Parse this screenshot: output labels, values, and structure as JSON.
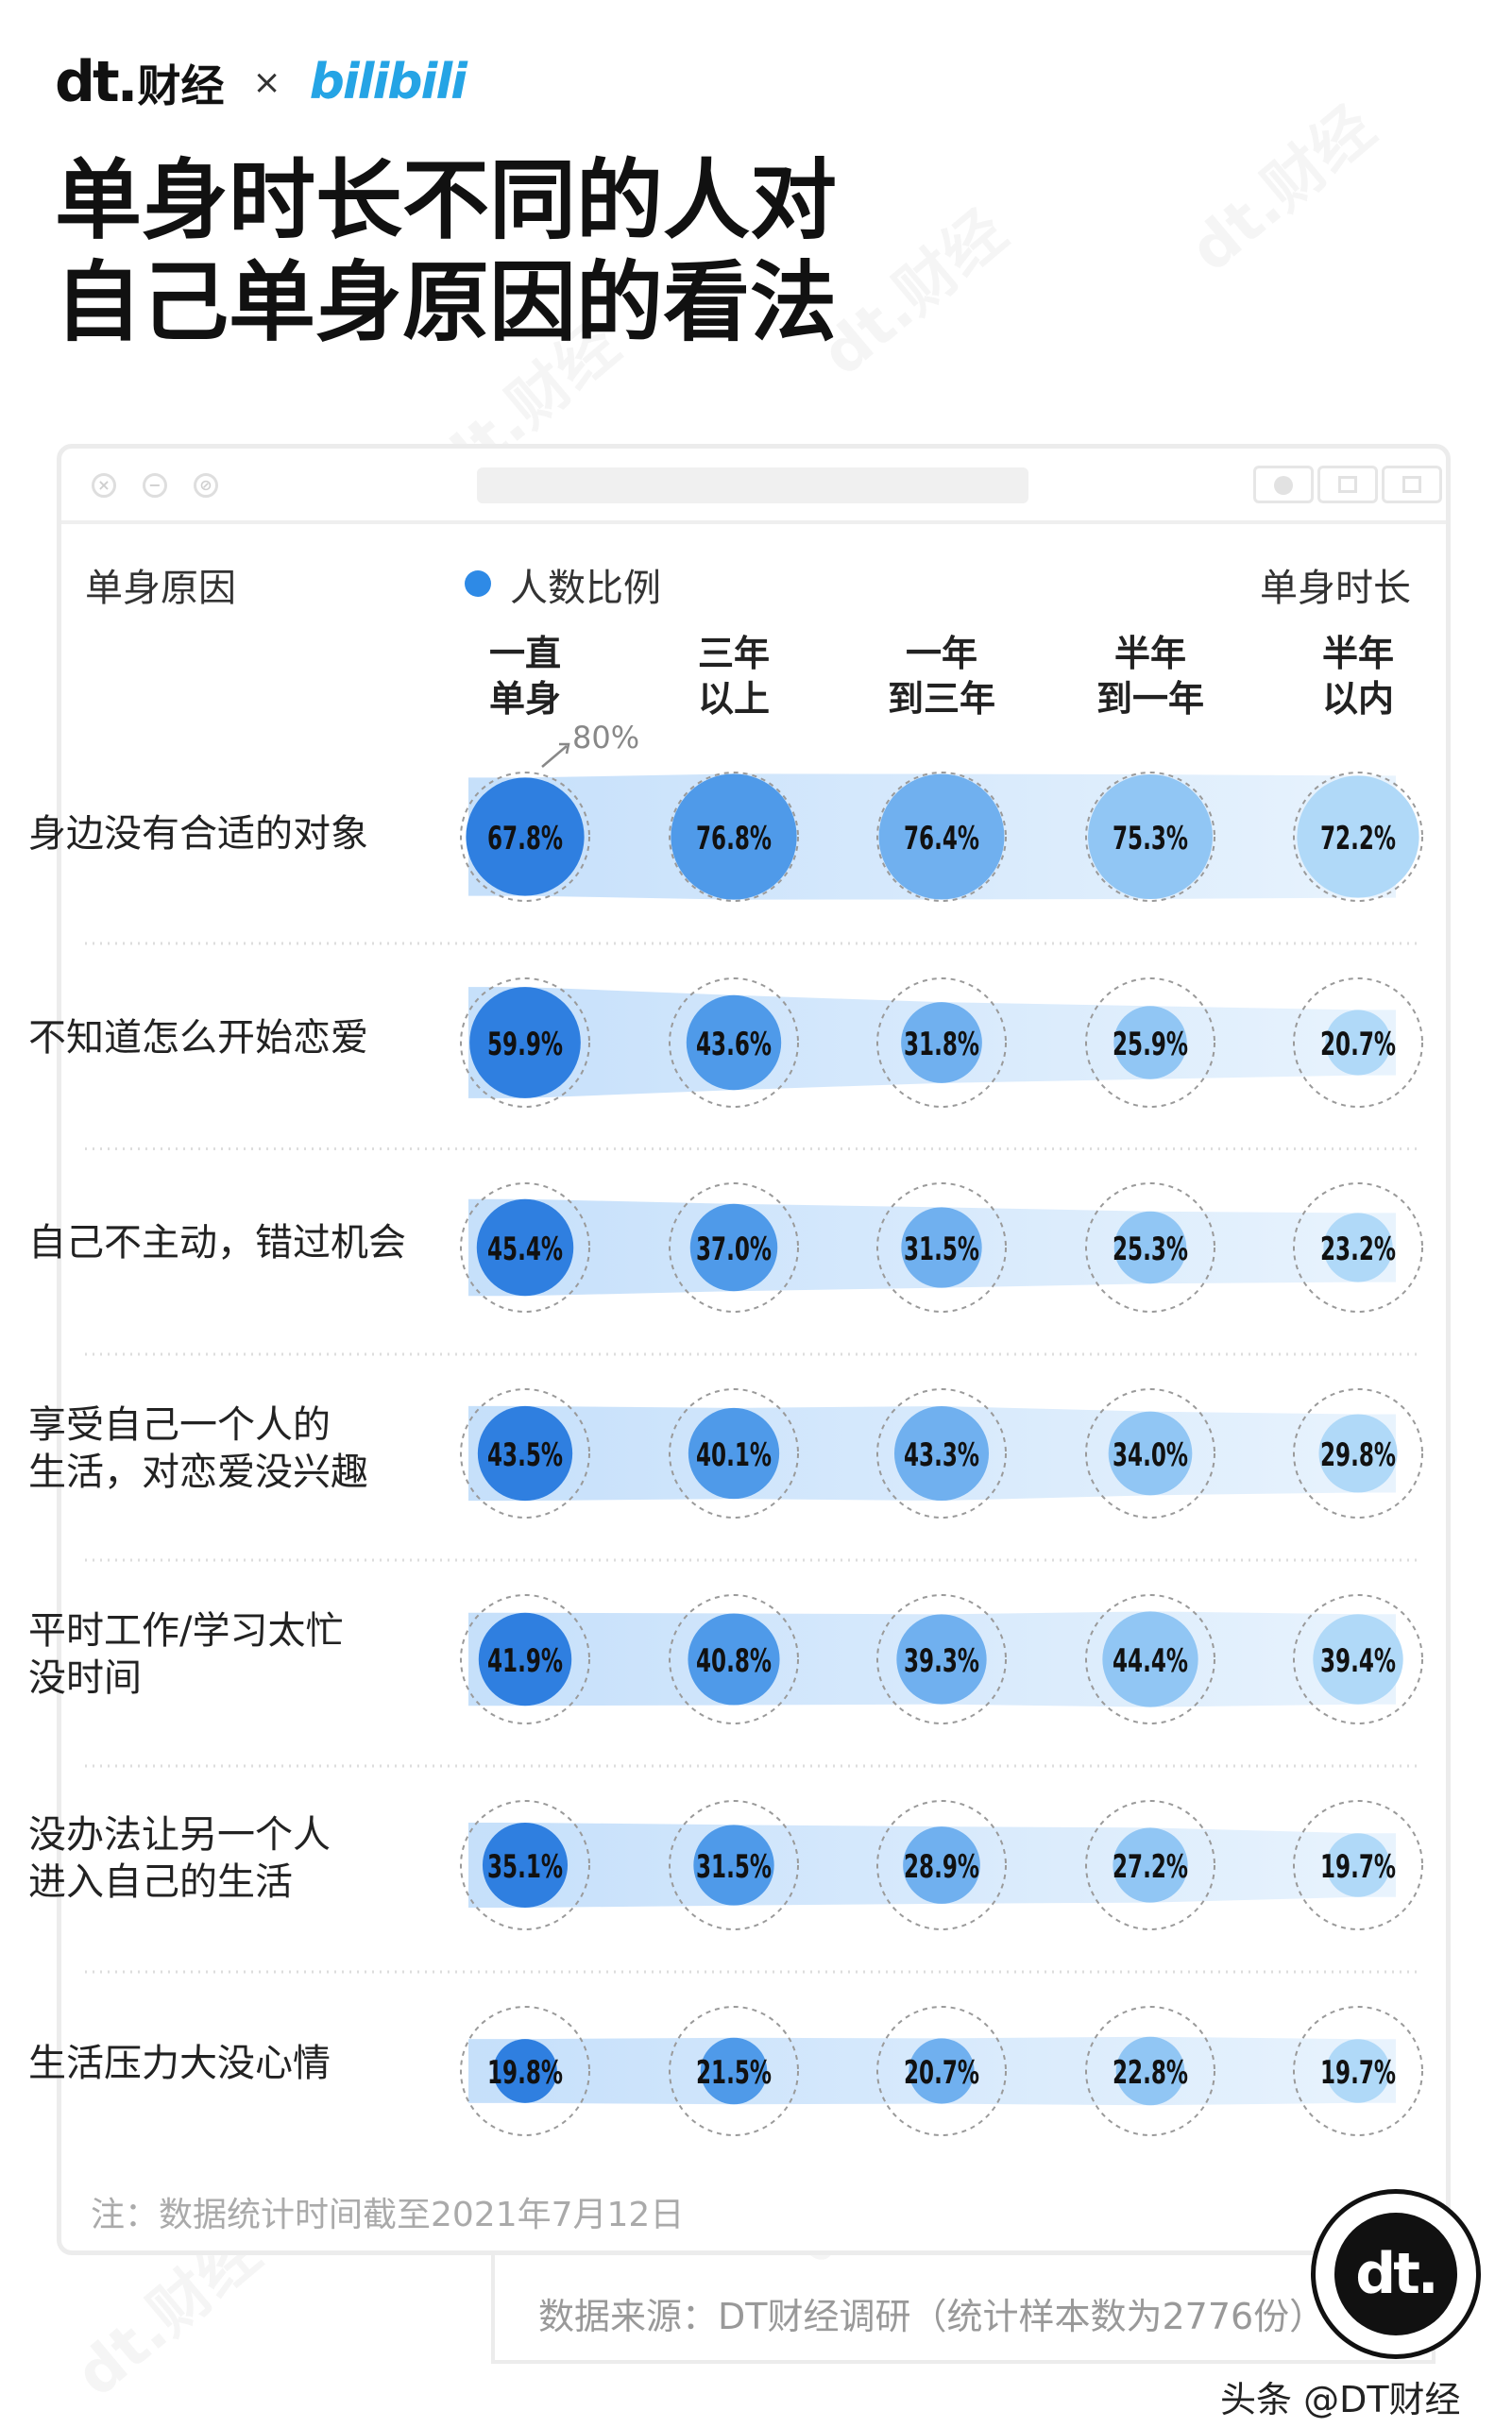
{
  "brand": {
    "dt": "dt.",
    "cj": "财经",
    "times": "×",
    "partner": "bilibili",
    "badge": "dt."
  },
  "watermark": "dt.财经",
  "title": {
    "line1": "单身时长不同的人对",
    "line2": "自己单身原因的看法"
  },
  "window": {
    "controls": [
      "×",
      "−",
      "⊘"
    ]
  },
  "chart_header": {
    "left": "单身原因",
    "legend": "人数比例",
    "right": "单身时长",
    "scale_note": "80%"
  },
  "colors": {
    "accent": "#2e8ae6",
    "bar": "#cfe4fb"
  },
  "chart_data": {
    "type": "bubble-matrix",
    "columns": [
      {
        "lines": [
          "一直",
          "单身"
        ]
      },
      {
        "lines": [
          "三年",
          "以上"
        ]
      },
      {
        "lines": [
          "一年",
          "到三年"
        ]
      },
      {
        "lines": [
          "半年",
          "到一年"
        ]
      },
      {
        "lines": [
          "半年",
          "以内"
        ]
      }
    ],
    "column_colors": [
      "#2f7fe0",
      "#4f9ae9",
      "#70b0ef",
      "#91c6f4",
      "#b0d9f8"
    ],
    "rows": [
      {
        "label": [
          "身边没有合适的对象"
        ],
        "values": [
          67.8,
          76.8,
          76.4,
          75.3,
          72.2
        ],
        "text": [
          "67.8%",
          "76.8%",
          "76.4%",
          "75.3%",
          "72.2%"
        ]
      },
      {
        "label": [
          "不知道怎么开始恋爱"
        ],
        "values": [
          59.9,
          43.6,
          31.8,
          25.9,
          20.7
        ],
        "text": [
          "59.9%",
          "43.6%",
          "31.8%",
          "25.9%",
          "20.7%"
        ]
      },
      {
        "label": [
          "自己不主动，错过机会"
        ],
        "values": [
          45.4,
          37.0,
          31.5,
          25.3,
          23.2
        ],
        "text": [
          "45.4%",
          "37.0%",
          "31.5%",
          "25.3%",
          "23.2%"
        ]
      },
      {
        "label": [
          "享受自己一个人的",
          "生活，对恋爱没兴趣"
        ],
        "values": [
          43.5,
          40.1,
          43.3,
          34.0,
          29.8
        ],
        "text": [
          "43.5%",
          "40.1%",
          "43.3%",
          "34.0%",
          "29.8%"
        ]
      },
      {
        "label": [
          "平时工作/学习太忙",
          "没时间"
        ],
        "values": [
          41.9,
          40.8,
          39.3,
          44.4,
          39.4
        ],
        "text": [
          "41.9%",
          "40.8%",
          "39.3%",
          "44.4%",
          "39.4%"
        ]
      },
      {
        "label": [
          "没办法让另一个人",
          "进入自己的生活"
        ],
        "values": [
          35.1,
          31.5,
          28.9,
          27.2,
          19.7
        ],
        "text": [
          "35.1%",
          "31.5%",
          "28.9%",
          "27.2%",
          "19.7%"
        ]
      },
      {
        "label": [
          "生活压力大没心情"
        ],
        "values": [
          19.8,
          21.5,
          20.7,
          22.8,
          19.7
        ],
        "text": [
          "19.8%",
          "21.5%",
          "20.7%",
          "22.8%",
          "19.7%"
        ]
      }
    ],
    "max_value": 80
  },
  "footnote": "注：数据统计时间截至2021年7月12日",
  "source": "数据来源：DT财经调研（统计样本数为2776份）",
  "toutiao": "头条 @DT财经"
}
